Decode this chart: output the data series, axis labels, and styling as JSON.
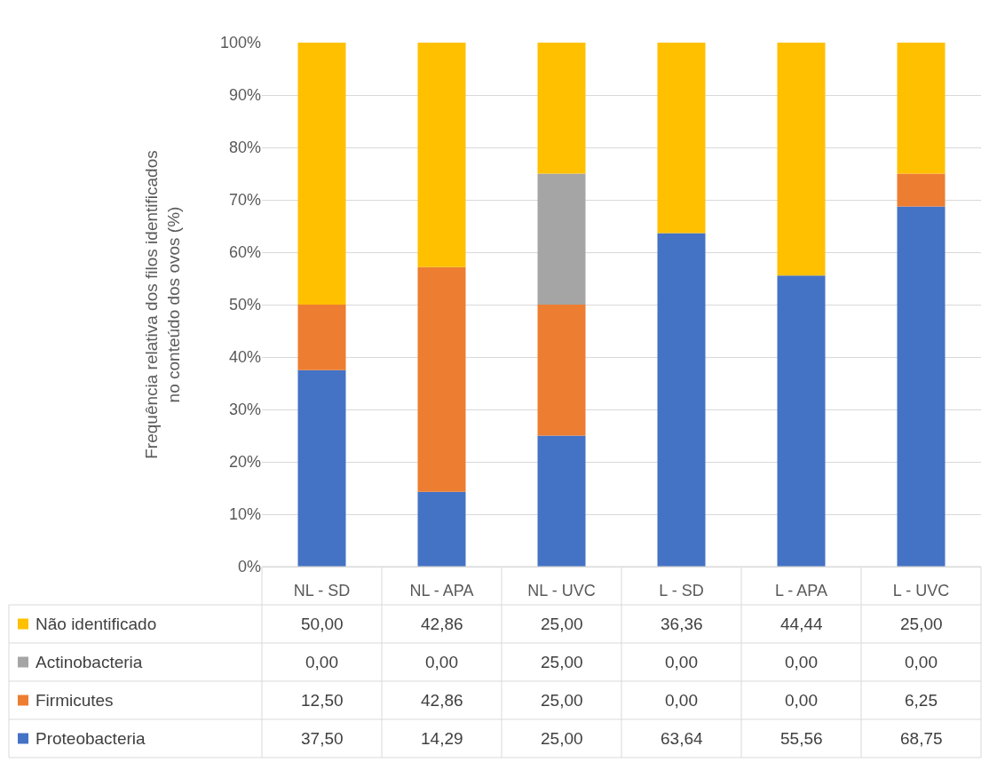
{
  "chart_data": {
    "type": "bar",
    "stacked": true,
    "ylabel": "Frequência relativa dos filos identificados no conteúdo dos ovos (%)",
    "categories": [
      "NL - SD",
      "NL - APA",
      "NL - UVC",
      "L - SD",
      "L - APA",
      "L - UVC"
    ],
    "series": [
      {
        "name": "Proteobacteria",
        "color": "#4472c4",
        "values": [
          37.5,
          14.29,
          25.0,
          63.64,
          55.56,
          68.75
        ],
        "value_labels": [
          "37,50",
          "14,29",
          "25,00",
          "63,64",
          "55,56",
          "68,75"
        ]
      },
      {
        "name": "Firmicutes",
        "color": "#ed7d31",
        "values": [
          12.5,
          42.86,
          25.0,
          0.0,
          0.0,
          6.25
        ],
        "value_labels": [
          "12,50",
          "42,86",
          "25,00",
          "0,00",
          "0,00",
          "6,25"
        ]
      },
      {
        "name": "Actinobacteria",
        "color": "#a5a5a5",
        "values": [
          0.0,
          0.0,
          25.0,
          0.0,
          0.0,
          0.0
        ],
        "value_labels": [
          "0,00",
          "0,00",
          "25,00",
          "0,00",
          "0,00",
          "0,00"
        ]
      },
      {
        "name": "Não identificado",
        "color": "#ffc000",
        "values": [
          50.0,
          42.86,
          25.0,
          36.36,
          44.44,
          25.0
        ],
        "value_labels": [
          "50,00",
          "42,86",
          "25,00",
          "36,36",
          "44,44",
          "25,00"
        ]
      }
    ],
    "ylim": [
      0,
      100
    ],
    "yticks": [
      {
        "value": 0,
        "label": "0%"
      },
      {
        "value": 10,
        "label": "10%"
      },
      {
        "value": 20,
        "label": "20%"
      },
      {
        "value": 30,
        "label": "30%"
      },
      {
        "value": 40,
        "label": "40%"
      },
      {
        "value": 50,
        "label": "50%"
      },
      {
        "value": 60,
        "label": "60%"
      },
      {
        "value": 70,
        "label": "70%"
      },
      {
        "value": 80,
        "label": "80%"
      },
      {
        "value": 90,
        "label": "90%"
      },
      {
        "value": 100,
        "label": "100%"
      }
    ],
    "grid": "y",
    "legend": "bottom left"
  }
}
